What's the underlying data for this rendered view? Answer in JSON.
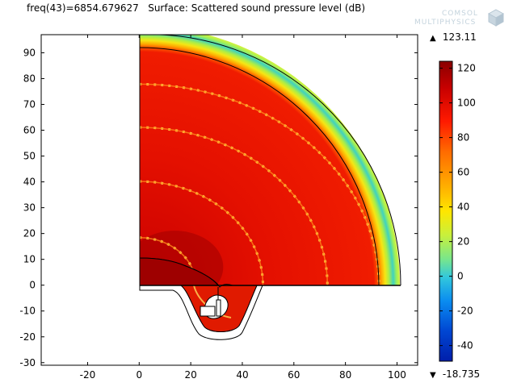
{
  "header": {
    "freq_label": "freq(43)=6854.679627",
    "surface_label": "Surface: Scattered sound pressure level (dB)"
  },
  "logo": {
    "line1": "COMSOL",
    "line2": "MULTIPHYSICS",
    "icon": "comsol-cube-icon"
  },
  "colorbar": {
    "max_label": "123.11",
    "min_label": "-18.735",
    "max_icon": "triangle-up-icon",
    "min_icon": "triangle-down-icon",
    "ticks": [
      "120",
      "100",
      "80",
      "60",
      "40",
      "20",
      "0",
      "-20",
      "-40"
    ],
    "tick_values": [
      120,
      100,
      80,
      60,
      40,
      20,
      0,
      -20,
      -40
    ],
    "range": [
      -49,
      124
    ],
    "colormap": [
      "#8a0000",
      "#c80000",
      "#ff1a00",
      "#ff6a00",
      "#ffb000",
      "#ffe600",
      "#c8f03c",
      "#78e68c",
      "#32c8dc",
      "#0a8cf0",
      "#0046d2",
      "#001eaa"
    ]
  },
  "chart_data": {
    "type": "heatmap",
    "title": "Surface: Scattered sound pressure level (dB)",
    "subtitle": "freq(43)=6854.679627",
    "xlabel": "",
    "ylabel": "",
    "xlim": [
      -38,
      108
    ],
    "ylim": [
      -31,
      97
    ],
    "xticks": [
      -20,
      0,
      20,
      40,
      60,
      80,
      100
    ],
    "yticks": [
      -30,
      -20,
      -10,
      0,
      10,
      20,
      30,
      40,
      50,
      60,
      70,
      80,
      90
    ],
    "xtick_labels": [
      "-20",
      "0",
      "20",
      "40",
      "60",
      "80",
      "100"
    ],
    "ytick_labels": [
      "-30",
      "-20",
      "-10",
      "0",
      "10",
      "20",
      "30",
      "40",
      "50",
      "60",
      "70",
      "80",
      "90"
    ],
    "value_range": [
      -18.735,
      123.11
    ],
    "unit": "dB",
    "domain_radii": {
      "physical_domain": 92.5,
      "perfectly_matched_layer_outer": 101
    },
    "bright_rings_radius": [
      22,
      48,
      73,
      93
    ],
    "grid": false
  }
}
